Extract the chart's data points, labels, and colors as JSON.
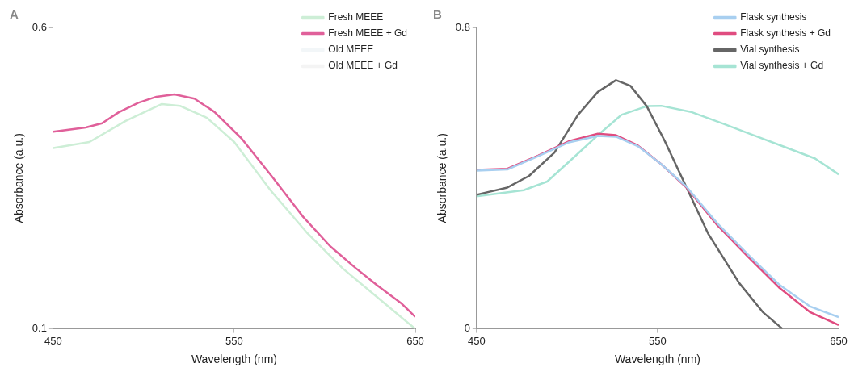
{
  "chart_data": [
    {
      "type": "line",
      "title": "A",
      "xlabel": "Wavelength (nm)",
      "ylabel": "Absorbance (a.u.)",
      "xlim": [
        450,
        650
      ],
      "xticks": [
        450,
        550,
        650
      ],
      "ylim": [
        0.1,
        0.6
      ],
      "yticks": [
        0.1,
        0.6
      ],
      "grid": false,
      "legend": "top right",
      "series": [
        {
          "name": "Fresh MEEE",
          "color": "#cdeed6",
          "x": [
            450,
            470,
            490,
            510,
            520,
            535,
            550,
            570,
            590,
            610,
            630,
            650
          ],
          "values": [
            0.4,
            0.41,
            0.445,
            0.473,
            0.47,
            0.45,
            0.41,
            0.33,
            0.26,
            0.2,
            0.15,
            0.1
          ]
        },
        {
          "name": "Fresh MEEE + Gd",
          "color": "#e0609a",
          "x": [
            450,
            468,
            477,
            486,
            497,
            507,
            517,
            528,
            539,
            554,
            571,
            588,
            603,
            617,
            629,
            642,
            650
          ],
          "values": [
            0.427,
            0.434,
            0.441,
            0.459,
            0.475,
            0.485,
            0.489,
            0.482,
            0.46,
            0.416,
            0.352,
            0.286,
            0.237,
            0.201,
            0.172,
            0.143,
            0.12
          ]
        },
        {
          "name": "Old MEEE",
          "color": "#f2f6f8"
        },
        {
          "name": "Old MEEE + Gd",
          "color": "#f4f4f4"
        }
      ]
    },
    {
      "type": "line",
      "title": "B",
      "xlabel": "Wavelength (nm)",
      "ylabel": "Absorbance (a.u.)",
      "xlim": [
        450,
        650
      ],
      "xticks": [
        450,
        550,
        650
      ],
      "ylim": [
        0,
        0.8
      ],
      "yticks": [
        0,
        0.8
      ],
      "grid": false,
      "legend": "top right",
      "series": [
        {
          "name": "Flask synthesis",
          "color": "#a8cff0",
          "x": [
            450,
            467,
            484,
            501,
            517,
            527,
            539,
            552,
            566,
            583,
            600,
            617,
            634,
            650
          ],
          "values": [
            0.42,
            0.423,
            0.458,
            0.495,
            0.512,
            0.51,
            0.485,
            0.437,
            0.377,
            0.28,
            0.197,
            0.118,
            0.06,
            0.031
          ]
        },
        {
          "name": "Flask synthesis + Gd",
          "color": "#e04c80",
          "x": [
            450,
            467,
            484,
            501,
            517,
            527,
            539,
            552,
            566,
            583,
            600,
            617,
            634,
            650
          ],
          "values": [
            0.422,
            0.425,
            0.46,
            0.498,
            0.518,
            0.514,
            0.487,
            0.437,
            0.375,
            0.275,
            0.191,
            0.11,
            0.045,
            0.01
          ]
        },
        {
          "name": "Vial synthesis",
          "color": "#666666",
          "x": [
            450,
            467,
            479,
            493,
            506,
            517,
            527,
            535,
            544,
            554,
            566,
            578,
            595,
            608,
            619
          ],
          "values": [
            0.356,
            0.375,
            0.406,
            0.468,
            0.568,
            0.629,
            0.66,
            0.645,
            0.591,
            0.498,
            0.375,
            0.252,
            0.122,
            0.045,
            0.0
          ]
        },
        {
          "name": "Vial synthesis + Gd",
          "color": "#a6e4d4",
          "x": [
            450,
            476,
            489,
            503,
            517,
            530,
            544,
            552,
            569,
            586,
            603,
            620,
            637,
            650
          ],
          "values": [
            0.352,
            0.368,
            0.391,
            0.452,
            0.514,
            0.568,
            0.591,
            0.592,
            0.575,
            0.545,
            0.514,
            0.483,
            0.452,
            0.41
          ]
        }
      ]
    }
  ]
}
